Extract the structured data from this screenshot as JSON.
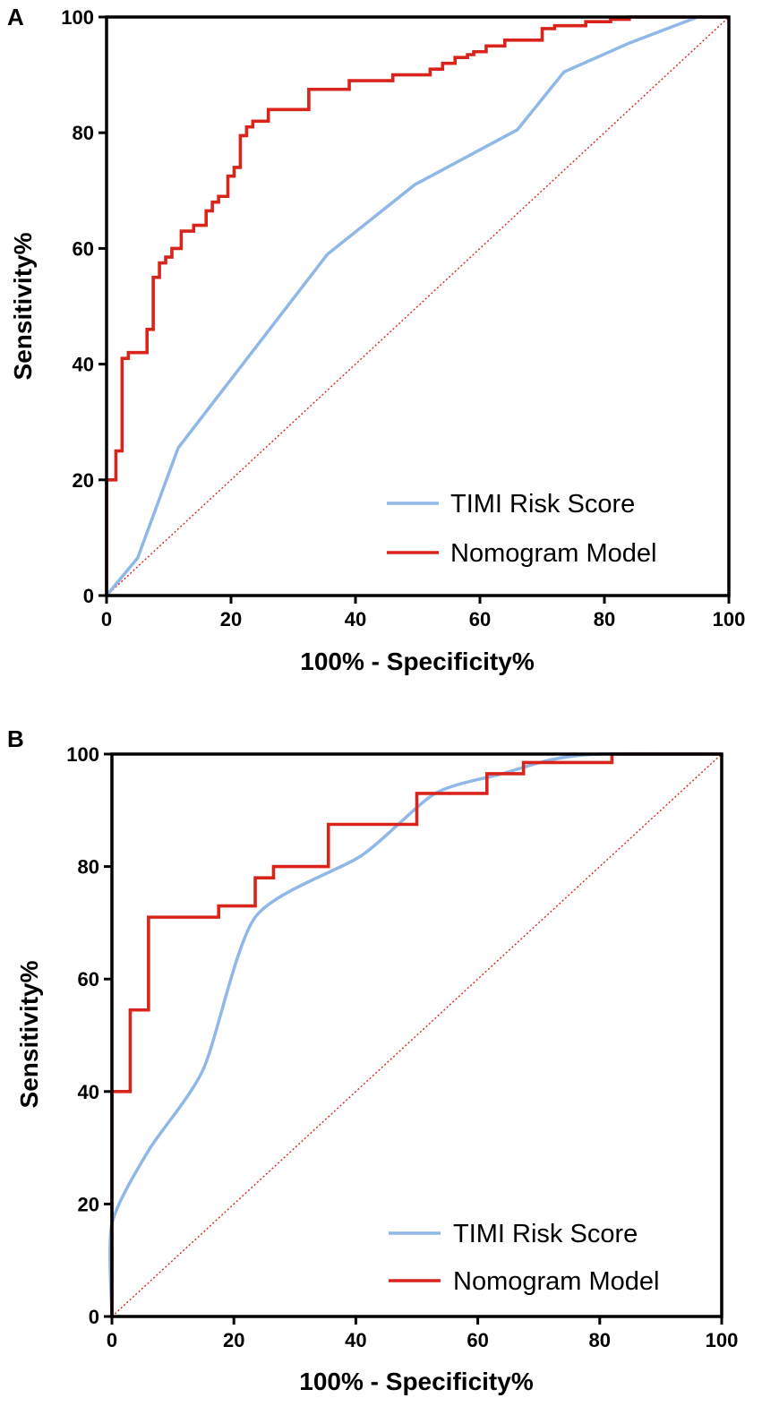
{
  "chart_data": [
    {
      "panel": "A",
      "type": "line",
      "title": "",
      "xlabel": "100% - Specificity%",
      "ylabel": "Sensitivity%",
      "xlim": [
        0,
        100
      ],
      "ylim": [
        0,
        100
      ],
      "xticks": [
        "0",
        "20",
        "40",
        "60",
        "80",
        "100"
      ],
      "yticks": [
        "0",
        "20",
        "40",
        "60",
        "80",
        "100"
      ],
      "legend_position": "bottom-right",
      "reference_line": {
        "x": [
          0,
          100
        ],
        "y": [
          0,
          100
        ],
        "color": "#d9241c",
        "style": "dotted"
      },
      "series": [
        {
          "name": "TIMI Risk Score",
          "color": "#8fb8e8",
          "x": [
            0,
            5.0,
            11.5,
            35.5,
            49.5,
            66.0,
            73.5,
            84.0,
            95.0,
            100
          ],
          "y": [
            0,
            6.5,
            25.5,
            59.0,
            71.0,
            80.5,
            90.5,
            95.5,
            100,
            100
          ]
        },
        {
          "name": "Nomogram Model",
          "color": "#d9241c",
          "x": [
            0,
            0,
            1.5,
            1.5,
            2.5,
            2.5,
            3.5,
            3.5,
            6.5,
            6.5,
            7.5,
            7.5,
            8.5,
            8.5,
            9.5,
            9.5,
            10.5,
            10.5,
            12.0,
            12.0,
            14.0,
            14.0,
            16.0,
            16.0,
            17.0,
            17.0,
            18.0,
            18.0,
            19.5,
            19.5,
            20.5,
            20.5,
            21.5,
            21.5,
            22.5,
            22.5,
            23.5,
            23.5,
            24.5,
            24.5,
            26.0,
            26.0,
            28.0,
            28.0,
            32.5,
            32.5,
            39.0,
            39.0,
            46.0,
            46.0,
            52.0,
            52.0,
            54.0,
            54.0,
            56.0,
            56.0,
            58.0,
            58.0,
            59.0,
            59.0,
            61.0,
            61.0,
            64.0,
            64.0,
            70.0,
            70.0,
            72.0,
            72.0,
            77.0,
            77.0,
            81.0,
            81.0,
            84.0,
            84.0,
            100
          ],
          "y": [
            0,
            20.0,
            20.0,
            25.0,
            25.0,
            41.0,
            41.0,
            42.0,
            42.0,
            46.0,
            46.0,
            55.0,
            55.0,
            57.5,
            57.5,
            58.5,
            58.5,
            60.0,
            60.0,
            63.0,
            63.0,
            64.0,
            64.0,
            66.5,
            66.5,
            68.0,
            68.0,
            69.0,
            69.0,
            72.5,
            72.5,
            74.0,
            74.0,
            79.5,
            79.5,
            81.0,
            81.0,
            82.0,
            82.0,
            82.0,
            82.0,
            84.0,
            84.0,
            84.0,
            84.0,
            87.5,
            87.5,
            89.0,
            89.0,
            90.0,
            90.0,
            91.0,
            91.0,
            92.0,
            92.0,
            93.0,
            93.0,
            93.5,
            93.5,
            94.0,
            94.0,
            95.0,
            95.0,
            96.0,
            96.0,
            98.0,
            98.0,
            98.5,
            98.5,
            99.2,
            99.2,
            99.6,
            99.6,
            100,
            100
          ]
        }
      ]
    },
    {
      "panel": "B",
      "type": "line",
      "title": "",
      "xlabel": "100% - Specificity%",
      "ylabel": "Sensitivity%",
      "xlim": [
        0,
        100
      ],
      "ylim": [
        0,
        100
      ],
      "xticks": [
        "0",
        "20",
        "40",
        "60",
        "80",
        "100"
      ],
      "yticks": [
        "0",
        "20",
        "40",
        "60",
        "80",
        "100"
      ],
      "legend_position": "bottom-right",
      "reference_line": {
        "x": [
          0,
          100
        ],
        "y": [
          0,
          100
        ],
        "color": "#d9241c",
        "style": "dotted"
      },
      "series": [
        {
          "name": "TIMI Risk Score",
          "color": "#8fb8e8",
          "x": [
            0,
            0,
            6.0,
            15.0,
            23.5,
            41.0,
            53.0,
            64.0,
            72.0,
            80.0,
            100
          ],
          "y": [
            0,
            16.5,
            29.5,
            44.0,
            71.0,
            82.0,
            93.0,
            96.5,
            99.0,
            100,
            100
          ],
          "smooth": true
        },
        {
          "name": "Nomogram Model",
          "color": "#d9241c",
          "x": [
            0,
            0,
            3.0,
            3.0,
            6.0,
            6.0,
            17.5,
            17.5,
            23.5,
            23.5,
            26.5,
            26.5,
            35.5,
            35.5,
            50.0,
            50.0,
            61.5,
            61.5,
            67.5,
            67.5,
            82.0,
            82.0,
            100
          ],
          "y": [
            0,
            40.0,
            40.0,
            54.5,
            54.5,
            71.0,
            71.0,
            73.0,
            73.0,
            78.0,
            78.0,
            80.0,
            80.0,
            87.5,
            87.5,
            93.0,
            93.0,
            96.5,
            96.5,
            98.5,
            98.5,
            100,
            100
          ]
        }
      ]
    }
  ]
}
